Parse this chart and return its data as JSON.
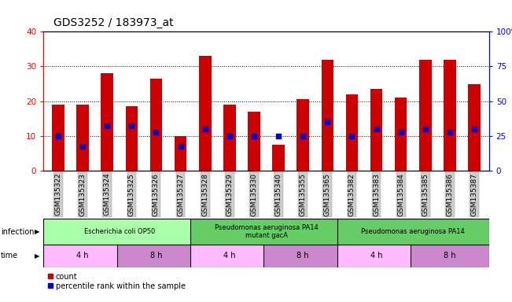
{
  "title": "GDS3252 / 183973_at",
  "samples": [
    "GSM135322",
    "GSM135323",
    "GSM135324",
    "GSM135325",
    "GSM135326",
    "GSM135327",
    "GSM135328",
    "GSM135329",
    "GSM135330",
    "GSM135340",
    "GSM135355",
    "GSM135365",
    "GSM135382",
    "GSM135383",
    "GSM135384",
    "GSM135385",
    "GSM135386",
    "GSM135387"
  ],
  "counts": [
    19.0,
    19.0,
    28.0,
    18.5,
    26.5,
    10.0,
    33.0,
    19.0,
    17.0,
    7.5,
    20.5,
    32.0,
    22.0,
    23.5,
    21.0,
    32.0,
    32.0,
    25.0
  ],
  "percentile_ranks": [
    25.0,
    17.5,
    32.5,
    32.5,
    27.5,
    17.5,
    30.0,
    25.0,
    25.0,
    25.0,
    25.0,
    35.0,
    25.0,
    30.0,
    27.5,
    30.0,
    27.5,
    30.0
  ],
  "ylim_left": [
    0,
    40
  ],
  "ylim_right": [
    0,
    100
  ],
  "bar_color": "#cc0000",
  "percentile_color": "#0000cc",
  "background_color": "#ffffff",
  "infection_groups": [
    {
      "label": "Escherichia coli OP50",
      "start": 0,
      "end": 6,
      "color": "#aaffaa"
    },
    {
      "label": "Pseudomonas aeruginosa PA14\nmutant gacA",
      "start": 6,
      "end": 12,
      "color": "#66cc66"
    },
    {
      "label": "Pseudomonas aeruginosa PA14",
      "start": 12,
      "end": 18,
      "color": "#66cc66"
    }
  ],
  "time_groups": [
    {
      "label": "4 h",
      "start": 0,
      "end": 3,
      "color": "#ffbbff"
    },
    {
      "label": "8 h",
      "start": 3,
      "end": 6,
      "color": "#cc88cc"
    },
    {
      "label": "4 h",
      "start": 6,
      "end": 9,
      "color": "#ffbbff"
    },
    {
      "label": "8 h",
      "start": 9,
      "end": 12,
      "color": "#cc88cc"
    },
    {
      "label": "4 h",
      "start": 12,
      "end": 15,
      "color": "#ffbbff"
    },
    {
      "label": "8 h",
      "start": 15,
      "end": 18,
      "color": "#cc88cc"
    }
  ],
  "title_fontsize": 10,
  "tick_fontsize": 6.5,
  "bar_width": 0.5
}
